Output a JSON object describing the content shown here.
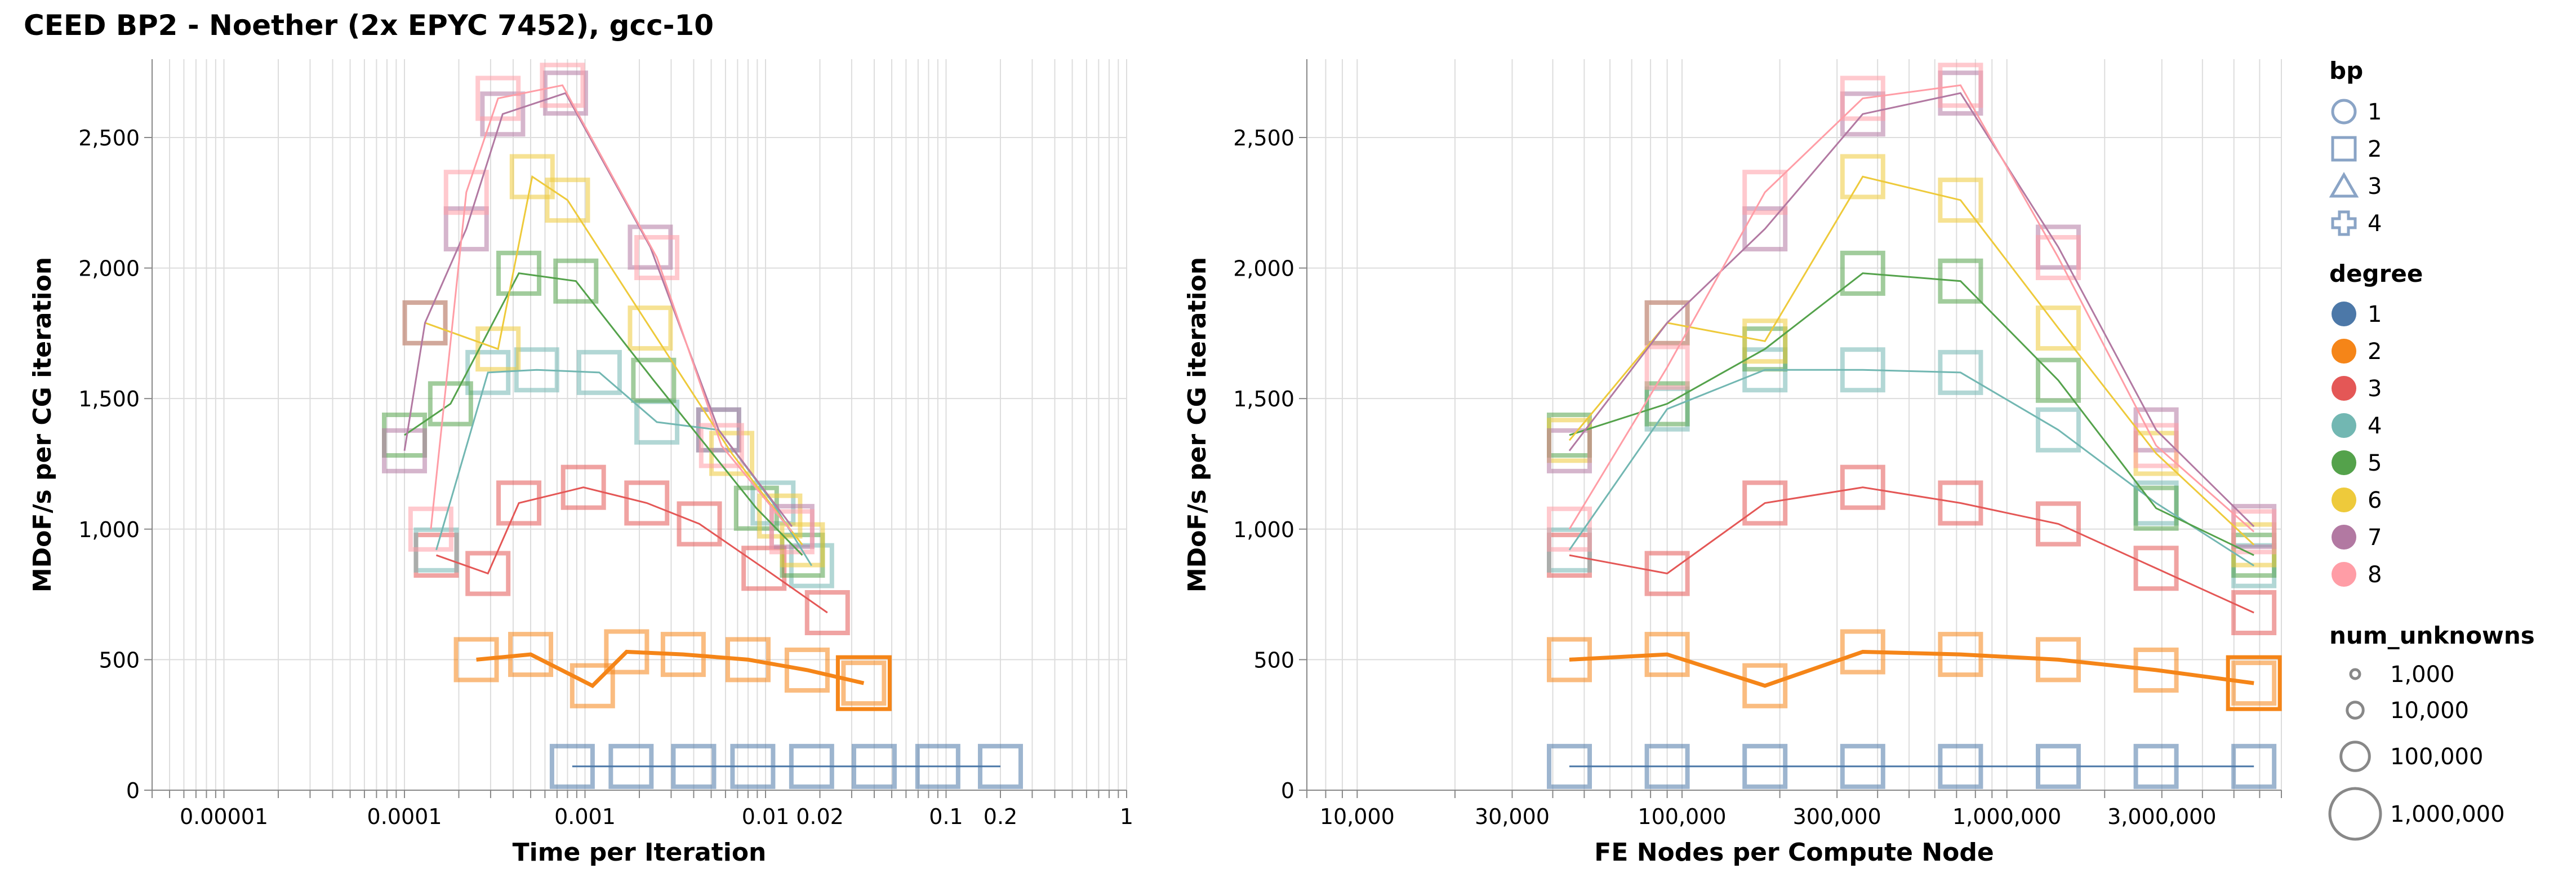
{
  "title": "CEED BP2 - Noether (2x EPYC 7452), gcc-10",
  "legend": {
    "bp": {
      "title": "bp",
      "entries": [
        {
          "label": "1",
          "shape": "circle"
        },
        {
          "label": "2",
          "shape": "square"
        },
        {
          "label": "3",
          "shape": "triangle"
        },
        {
          "label": "4",
          "shape": "cross"
        }
      ]
    },
    "degree": {
      "title": "degree",
      "entries": [
        {
          "label": "1",
          "color": "#4c78a8"
        },
        {
          "label": "2",
          "color": "#f58518"
        },
        {
          "label": "3",
          "color": "#e45756"
        },
        {
          "label": "4",
          "color": "#72b7b2"
        },
        {
          "label": "5",
          "color": "#54a24b"
        },
        {
          "label": "6",
          "color": "#eeca3b"
        },
        {
          "label": "7",
          "color": "#b279a2"
        },
        {
          "label": "8",
          "color": "#ff9da6"
        }
      ]
    },
    "num_unknowns": {
      "title": "num_unknowns",
      "entries": [
        {
          "label": "1,000",
          "value": 1000
        },
        {
          "label": "10,000",
          "value": 10000
        },
        {
          "label": "100,000",
          "value": 100000
        },
        {
          "label": "1,000,000",
          "value": 1000000
        }
      ]
    }
  },
  "chart_data": [
    {
      "type": "line",
      "xlabel": "Time per Iteration",
      "ylabel": "MDoF/s per CG iteration",
      "xscale": "log",
      "xlim": [
        4e-06,
        1
      ],
      "ylim": [
        0,
        2800
      ],
      "grid": true,
      "x_ticks": [
        {
          "value": 1e-05,
          "label": "0.00001"
        },
        {
          "value": 0.0001,
          "label": "0.0001"
        },
        {
          "value": 0.001,
          "label": "0.001"
        },
        {
          "value": 0.01,
          "label": "0.01"
        },
        {
          "value": 0.02,
          "label": "0.02"
        },
        {
          "value": 0.1,
          "label": "0.1"
        },
        {
          "value": 0.2,
          "label": "0.2"
        },
        {
          "value": 1,
          "label": "1"
        }
      ],
      "y_ticks": [
        {
          "value": 0,
          "label": "0"
        },
        {
          "value": 500,
          "label": "500"
        },
        {
          "value": 1000,
          "label": "1,000"
        },
        {
          "value": 1500,
          "label": "1,500"
        },
        {
          "value": 2000,
          "label": "2,000"
        },
        {
          "value": 2500,
          "label": "2,500"
        }
      ],
      "series": [
        {
          "degree": "1",
          "color": "#4c78a8",
          "points": [
            [
              0.00085,
              91
            ],
            [
              0.0018,
              91
            ],
            [
              0.004,
              91
            ],
            [
              0.0085,
              91
            ],
            [
              0.018,
              91
            ],
            [
              0.04,
              91
            ],
            [
              0.09,
              91
            ],
            [
              0.2,
              91
            ]
          ]
        },
        {
          "degree": "2",
          "color": "#f58518",
          "points": [
            [
              0.00025,
              500
            ],
            [
              0.0005,
              520
            ],
            [
              0.0011,
              400
            ],
            [
              0.0017,
              530
            ],
            [
              0.0035,
              520
            ],
            [
              0.008,
              500
            ],
            [
              0.017,
              460
            ],
            [
              0.035,
              410
            ]
          ]
        },
        {
          "degree": "3",
          "color": "#e45756",
          "points": [
            [
              0.00015,
              900
            ],
            [
              0.00029,
              830
            ],
            [
              0.00043,
              1100
            ],
            [
              0.00098,
              1160
            ],
            [
              0.0022,
              1100
            ],
            [
              0.0043,
              1020
            ],
            [
              0.0098,
              850
            ],
            [
              0.022,
              680
            ]
          ]
        },
        {
          "degree": "4",
          "color": "#72b7b2",
          "points": [
            [
              0.00015,
              920
            ],
            [
              0.00029,
              1600
            ],
            [
              0.00054,
              1610
            ],
            [
              0.0012,
              1600
            ],
            [
              0.0025,
              1410
            ],
            [
              0.0055,
              1380
            ],
            [
              0.011,
              1100
            ],
            [
              0.018,
              860
            ]
          ]
        },
        {
          "degree": "5",
          "color": "#54a24b",
          "points": [
            [
              0.0001,
              1360
            ],
            [
              0.00018,
              1480
            ],
            [
              0.00043,
              1980
            ],
            [
              0.00089,
              1950
            ],
            [
              0.0024,
              1570
            ],
            [
              0.0089,
              1080
            ],
            [
              0.016,
              900
            ]
          ]
        },
        {
          "degree": "6",
          "color": "#eeca3b",
          "points": [
            [
              0.00013,
              1790
            ],
            [
              0.00033,
              1690
            ],
            [
              0.00051,
              2350
            ],
            [
              0.0008,
              2260
            ],
            [
              0.0023,
              1770
            ],
            [
              0.0065,
              1290
            ],
            [
              0.012,
              1050
            ],
            [
              0.016,
              940
            ]
          ]
        },
        {
          "degree": "7",
          "color": "#b279a2",
          "points": [
            [
              0.0001,
              1300
            ],
            [
              0.00013,
              1790
            ],
            [
              0.00022,
              2150
            ],
            [
              0.00035,
              2590
            ],
            [
              0.00078,
              2670
            ],
            [
              0.0023,
              2080
            ],
            [
              0.0055,
              1380
            ],
            [
              0.014,
              1010
            ]
          ]
        },
        {
          "degree": "8",
          "color": "#ff9da6",
          "points": [
            [
              0.00014,
              1000
            ],
            [
              0.00022,
              2290
            ],
            [
              0.00033,
              2650
            ],
            [
              0.00075,
              2700
            ],
            [
              0.0025,
              2040
            ],
            [
              0.0057,
              1320
            ],
            [
              0.014,
              990
            ]
          ]
        }
      ]
    },
    {
      "type": "line",
      "xlabel": "FE Nodes per Compute Node",
      "ylabel": "MDoF/s per CG iteration",
      "xscale": "log",
      "xlim": [
        7000,
        7000000
      ],
      "ylim": [
        0,
        2800
      ],
      "grid": true,
      "x_ticks": [
        {
          "value": 10000,
          "label": "10,000"
        },
        {
          "value": 30000,
          "label": "30,000"
        },
        {
          "value": 100000,
          "label": "100,000"
        },
        {
          "value": 300000,
          "label": "300,000"
        },
        {
          "value": 1000000,
          "label": "1,000,000"
        },
        {
          "value": 3000000,
          "label": "3,000,000"
        }
      ],
      "y_ticks": [
        {
          "value": 0,
          "label": "0"
        },
        {
          "value": 500,
          "label": "500"
        },
        {
          "value": 1000,
          "label": "1,000"
        },
        {
          "value": 1500,
          "label": "1,500"
        },
        {
          "value": 2000,
          "label": "2,000"
        },
        {
          "value": 2500,
          "label": "2,500"
        }
      ],
      "series": [
        {
          "degree": "1",
          "color": "#4c78a8",
          "points": [
            [
              45000,
              91
            ],
            [
              90000,
              91
            ],
            [
              180000,
              91
            ],
            [
              360000,
              91
            ],
            [
              720000,
              91
            ],
            [
              1440000,
              91
            ],
            [
              2880000,
              91
            ],
            [
              5760000,
              91
            ]
          ]
        },
        {
          "degree": "2",
          "color": "#f58518",
          "points": [
            [
              45000,
              500
            ],
            [
              90000,
              520
            ],
            [
              180000,
              400
            ],
            [
              360000,
              530
            ],
            [
              720000,
              520
            ],
            [
              1440000,
              500
            ],
            [
              2880000,
              460
            ],
            [
              5760000,
              410
            ]
          ]
        },
        {
          "degree": "3",
          "color": "#e45756",
          "points": [
            [
              45000,
              900
            ],
            [
              90000,
              830
            ],
            [
              180000,
              1100
            ],
            [
              360000,
              1160
            ],
            [
              720000,
              1100
            ],
            [
              1440000,
              1020
            ],
            [
              2880000,
              850
            ],
            [
              5760000,
              680
            ]
          ]
        },
        {
          "degree": "4",
          "color": "#72b7b2",
          "points": [
            [
              45000,
              920
            ],
            [
              90000,
              1460
            ],
            [
              180000,
              1610
            ],
            [
              360000,
              1610
            ],
            [
              720000,
              1600
            ],
            [
              1440000,
              1380
            ],
            [
              2880000,
              1100
            ],
            [
              5760000,
              860
            ]
          ]
        },
        {
          "degree": "5",
          "color": "#54a24b",
          "points": [
            [
              45000,
              1360
            ],
            [
              90000,
              1480
            ],
            [
              180000,
              1690
            ],
            [
              360000,
              1980
            ],
            [
              720000,
              1950
            ],
            [
              1440000,
              1570
            ],
            [
              2880000,
              1080
            ],
            [
              5760000,
              900
            ]
          ]
        },
        {
          "degree": "6",
          "color": "#eeca3b",
          "points": [
            [
              45000,
              1340
            ],
            [
              90000,
              1790
            ],
            [
              180000,
              1720
            ],
            [
              360000,
              2350
            ],
            [
              720000,
              2260
            ],
            [
              1440000,
              1770
            ],
            [
              2880000,
              1290
            ],
            [
              5760000,
              940
            ]
          ]
        },
        {
          "degree": "7",
          "color": "#b279a2",
          "points": [
            [
              45000,
              1300
            ],
            [
              90000,
              1790
            ],
            [
              180000,
              2150
            ],
            [
              360000,
              2590
            ],
            [
              720000,
              2670
            ],
            [
              1440000,
              2080
            ],
            [
              2880000,
              1380
            ],
            [
              5760000,
              1010
            ]
          ]
        },
        {
          "degree": "8",
          "color": "#ff9da6",
          "points": [
            [
              45000,
              1000
            ],
            [
              90000,
              1620
            ],
            [
              180000,
              2290
            ],
            [
              360000,
              2650
            ],
            [
              720000,
              2700
            ],
            [
              1440000,
              2040
            ],
            [
              2880000,
              1320
            ],
            [
              5760000,
              990
            ]
          ]
        }
      ]
    }
  ]
}
